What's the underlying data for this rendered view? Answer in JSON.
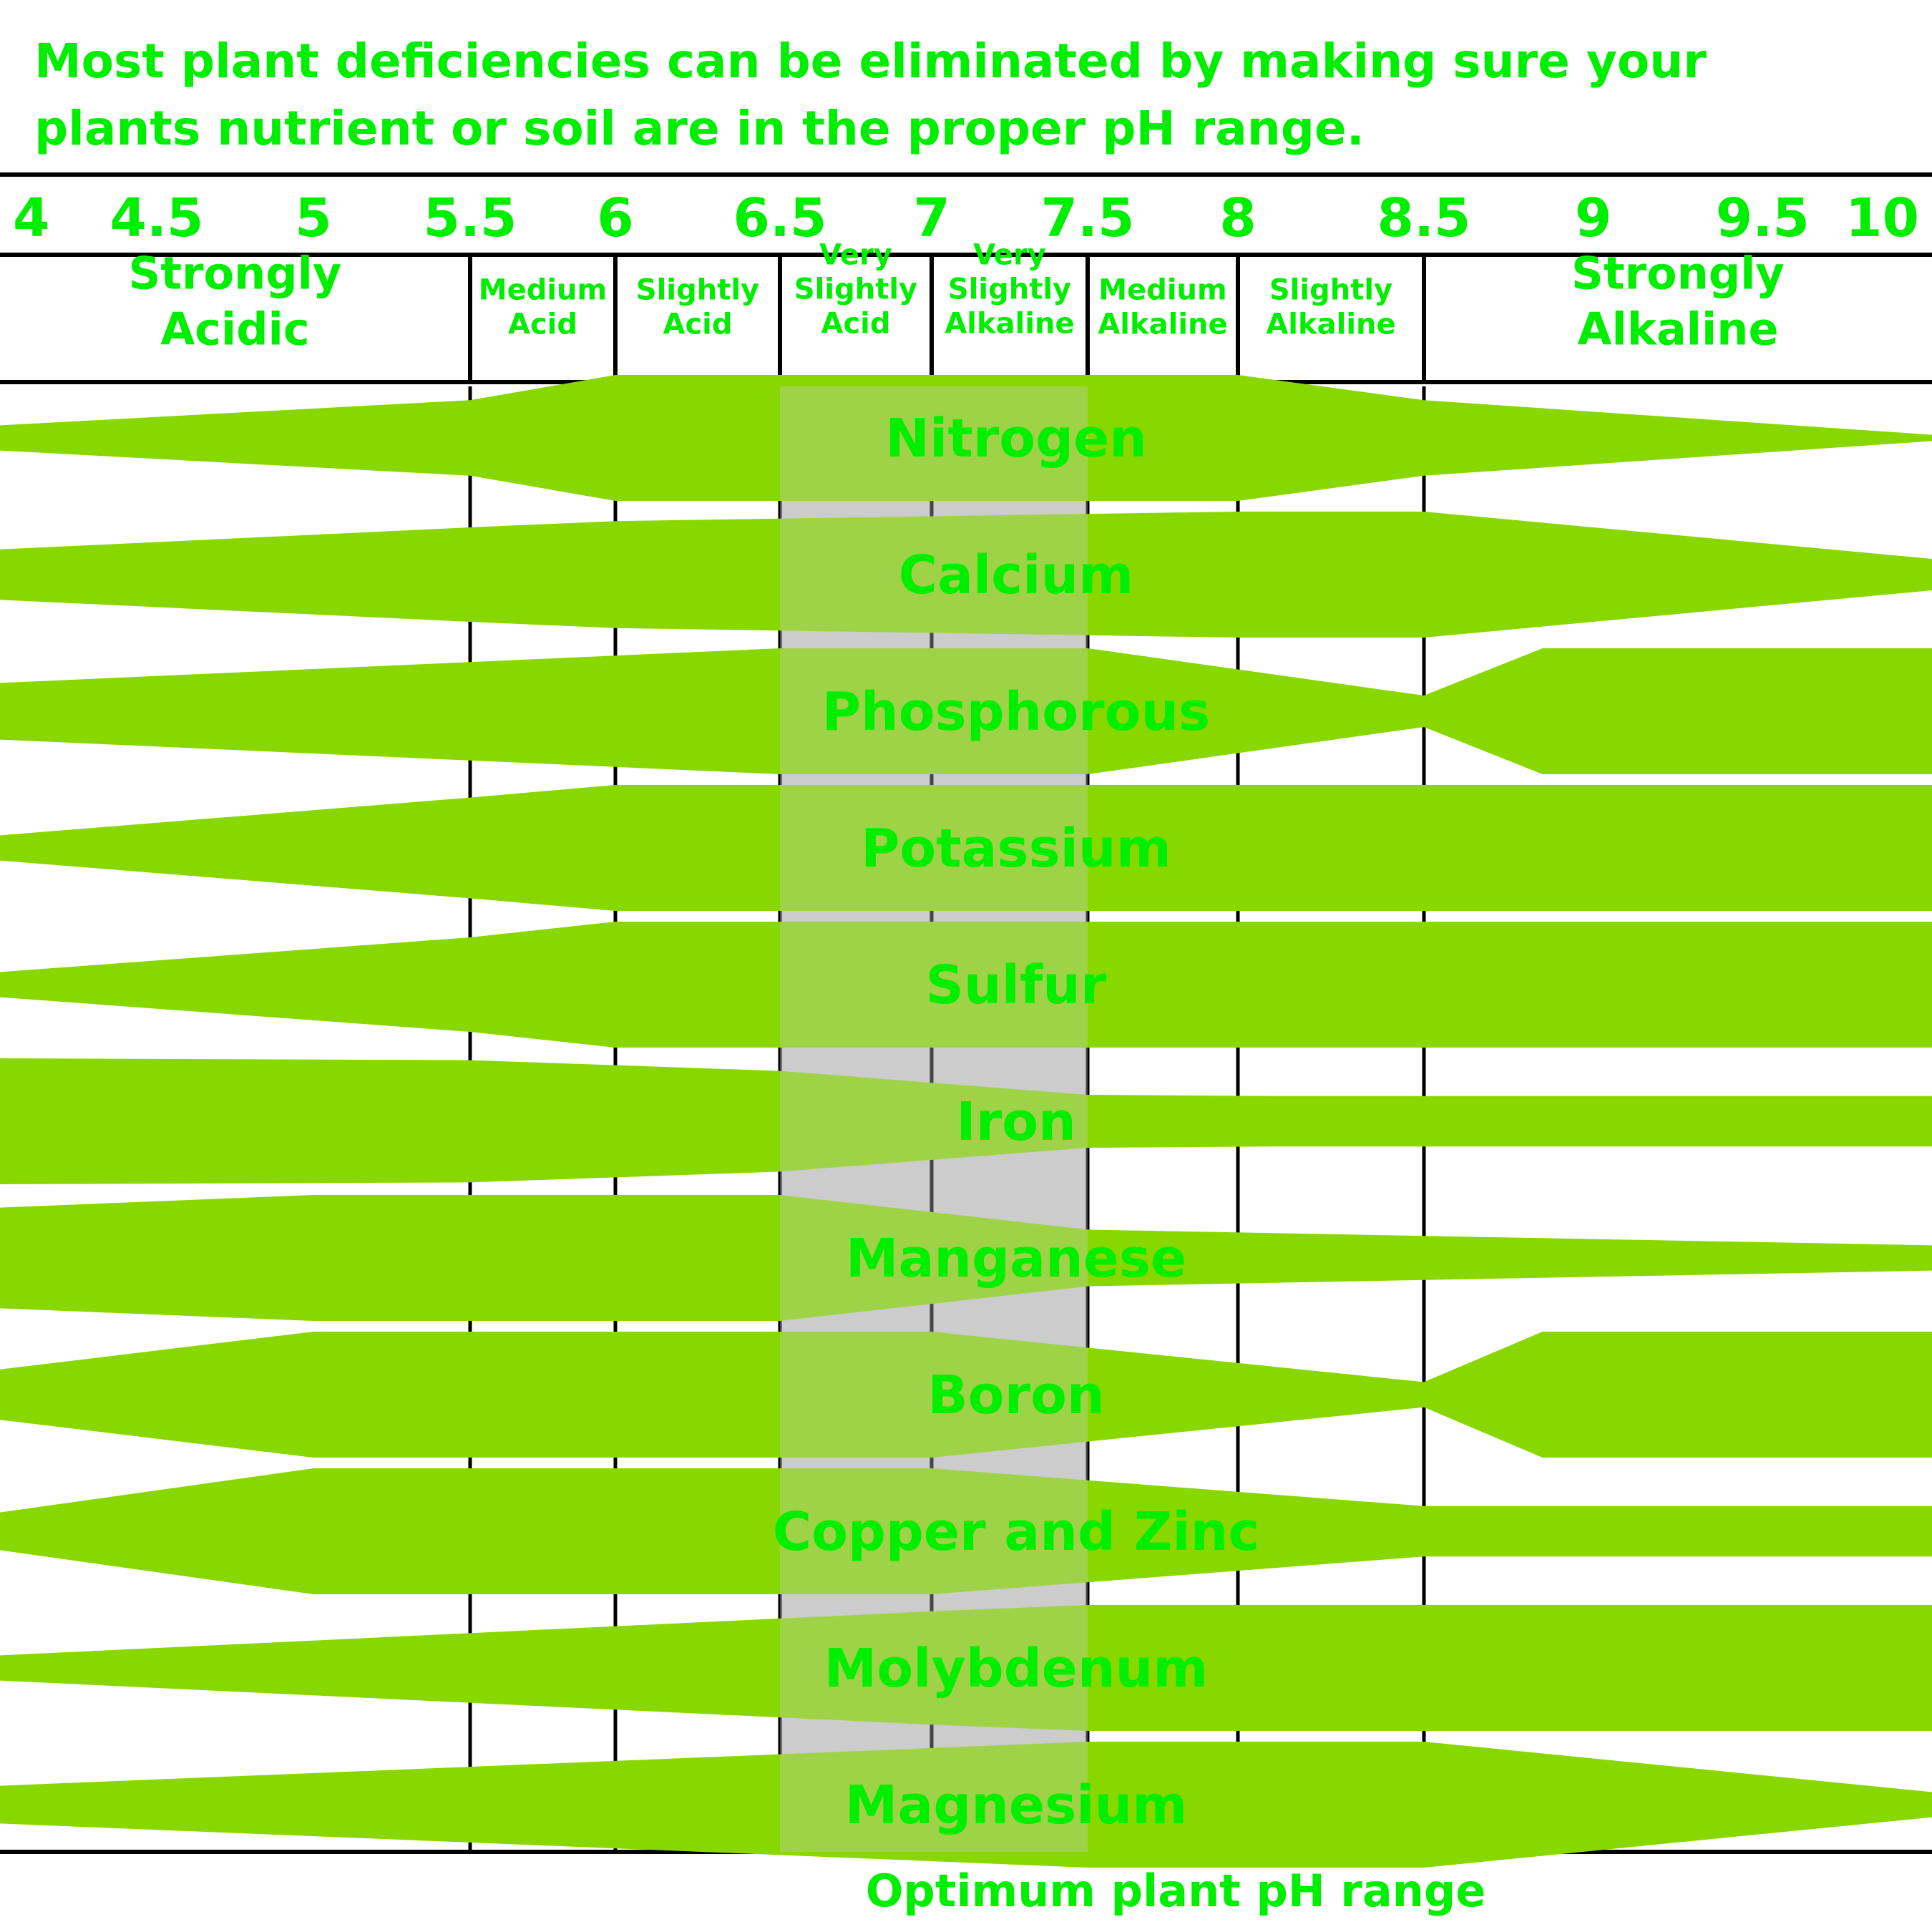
{
  "colors": {
    "text_green": "#00ee00",
    "bar_green": "#88d800",
    "optimum_band": "#cccccc",
    "optimum_overlay": "#8bb43a",
    "grid": "#000000"
  },
  "chart_data": {
    "type": "area",
    "title": "Most plant deficiencies can be eliminated by making sure your plants nutrient or soil are in the proper pH range.",
    "title_lines": [
      "Most plant deficiencies can be eliminated by making sure your",
      "plants nutrient or soil are in the proper pH range."
    ],
    "xlim": [
      4,
      10
    ],
    "ticks": [
      {
        "value": 4,
        "label": "4"
      },
      {
        "value": 4.5,
        "label": "4.5"
      },
      {
        "value": 5,
        "label": "5"
      },
      {
        "value": 5.5,
        "label": "5.5"
      },
      {
        "value": 6,
        "label": "6"
      },
      {
        "value": 6.5,
        "label": "6.5"
      },
      {
        "value": 7,
        "label": "7"
      },
      {
        "value": 7.5,
        "label": "7.5"
      },
      {
        "value": 8,
        "label": "8"
      },
      {
        "value": 8.5,
        "label": "8.5"
      },
      {
        "value": 9,
        "label": "9"
      },
      {
        "value": 9.5,
        "label": "9.5"
      },
      {
        "value": 10,
        "label": "10"
      }
    ],
    "gridlines_ph": [
      5.5,
      6,
      6.5,
      7,
      7.5,
      8,
      8.5
    ],
    "categories": [
      {
        "lines": [
          "Strongly",
          "Acidic"
        ],
        "from": 4,
        "to": 5.5,
        "size": "large"
      },
      {
        "lines": [
          "Medium",
          "Acid"
        ],
        "from": 5.5,
        "to": 6,
        "size": "small"
      },
      {
        "lines": [
          "Slightly",
          "Acid"
        ],
        "from": 6,
        "to": 6.5,
        "size": "small"
      },
      {
        "lines": [
          "Very",
          "Slightly",
          "Acid"
        ],
        "from": 6.5,
        "to": 7,
        "size": "small"
      },
      {
        "lines": [
          "Very",
          "Slightly",
          "Alkaline"
        ],
        "from": 7,
        "to": 7.5,
        "size": "small"
      },
      {
        "lines": [
          "Medium",
          "Alkaline"
        ],
        "from": 7.5,
        "to": 8,
        "size": "small"
      },
      {
        "lines": [
          "Slightly",
          "Alkaline"
        ],
        "from": 8,
        "to": 8.5,
        "size": "small"
      },
      {
        "lines": [
          "Strongly",
          "Alkaline"
        ],
        "from": 8.5,
        "to": 10,
        "size": "large"
      }
    ],
    "optimum_range": [
      6.5,
      7.5
    ],
    "optimum_label": "Optimum plant pH range",
    "series": [
      {
        "name": "Nitrogen",
        "x": [
          4,
          5.5,
          6,
          8,
          8.5,
          10
        ],
        "availability": [
          0.2,
          0.6,
          1.0,
          1.0,
          0.6,
          0.05
        ]
      },
      {
        "name": "Calcium",
        "x": [
          4,
          5.5,
          6,
          8,
          8.5,
          10
        ],
        "availability": [
          0.4,
          0.75,
          0.85,
          1.0,
          1.0,
          0.25
        ]
      },
      {
        "name": "Phosphorous",
        "x": [
          4,
          6.5,
          7.5,
          8.5,
          8.85,
          10
        ],
        "availability": [
          0.45,
          1.0,
          1.0,
          0.25,
          1.0,
          1.0
        ]
      },
      {
        "name": "Potassium",
        "x": [
          4,
          5.5,
          6,
          10
        ],
        "availability": [
          0.2,
          0.8,
          1.0,
          1.0
        ]
      },
      {
        "name": "Sulfur",
        "x": [
          4,
          5.5,
          6,
          10
        ],
        "availability": [
          0.2,
          0.75,
          1.0,
          1.0
        ]
      },
      {
        "name": "Iron",
        "x": [
          4,
          5.5,
          6.5,
          7.5,
          8.1,
          10
        ],
        "availability": [
          1.0,
          0.97,
          0.8,
          0.42,
          0.4,
          0.4
        ]
      },
      {
        "name": "Manganese",
        "x": [
          4,
          5,
          6.5,
          7.5,
          10
        ],
        "availability": [
          0.8,
          1.0,
          1.0,
          0.45,
          0.2
        ]
      },
      {
        "name": "Boron",
        "x": [
          4,
          5,
          7,
          8.5,
          8.85,
          10
        ],
        "availability": [
          0.4,
          1.0,
          1.0,
          0.2,
          1.0,
          1.0
        ]
      },
      {
        "name": "Copper and Zinc",
        "x": [
          4,
          5,
          7,
          8.5,
          10
        ],
        "availability": [
          0.3,
          1.0,
          1.0,
          0.4,
          0.4
        ]
      },
      {
        "name": "Molybdenum",
        "x": [
          4,
          7,
          7.5,
          10
        ],
        "availability": [
          0.2,
          0.9,
          1.0,
          1.0
        ]
      },
      {
        "name": "Magnesium",
        "x": [
          4,
          6.5,
          7.5,
          8.5,
          10
        ],
        "availability": [
          0.3,
          0.8,
          1.0,
          1.0,
          0.2
        ]
      }
    ]
  }
}
